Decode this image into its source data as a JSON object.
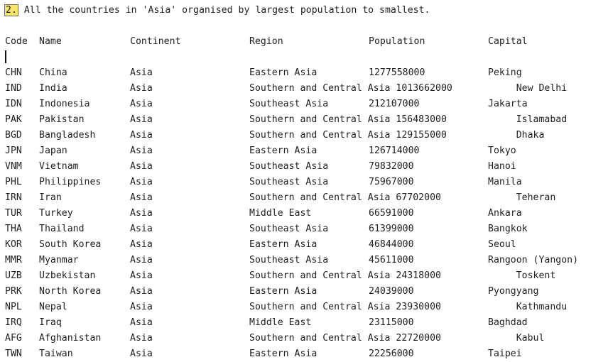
{
  "heading": {
    "marker": "2.",
    "text": " All the countries in 'Asia' organised by largest population to smallest."
  },
  "table": {
    "columns": [
      "Code",
      "Name",
      "Continent",
      "Region",
      "Population",
      "Capital"
    ],
    "rows": [
      [
        "CHN",
        "China",
        "Asia",
        "Eastern Asia",
        "1277558000",
        "Peking"
      ],
      [
        "IND",
        "India",
        "Asia",
        "Southern and Central Asia 1013662000",
        "",
        "     New Delhi"
      ],
      [
        "IDN",
        "Indonesia",
        "Asia",
        "Southeast Asia",
        "212107000",
        "Jakarta"
      ],
      [
        "PAK",
        "Pakistan",
        "Asia",
        "Southern and Central Asia 156483000",
        "",
        "     Islamabad"
      ],
      [
        "BGD",
        "Bangladesh",
        "Asia",
        "Southern and Central Asia 129155000",
        "",
        "     Dhaka"
      ],
      [
        "JPN",
        "Japan",
        "Asia",
        "Eastern Asia",
        "126714000",
        "Tokyo"
      ],
      [
        "VNM",
        "Vietnam",
        "Asia",
        "Southeast Asia",
        "79832000",
        "Hanoi"
      ],
      [
        "PHL",
        "Philippines",
        "Asia",
        "Southeast Asia",
        "75967000",
        "Manila"
      ],
      [
        "IRN",
        "Iran",
        "Asia",
        "Southern and Central Asia 67702000",
        "",
        "     Teheran"
      ],
      [
        "TUR",
        "Turkey",
        "Asia",
        "Middle East",
        "66591000",
        "Ankara"
      ],
      [
        "THA",
        "Thailand",
        "Asia",
        "Southeast Asia",
        "61399000",
        "Bangkok"
      ],
      [
        "KOR",
        "South Korea",
        "Asia",
        "Eastern Asia",
        "46844000",
        "Seoul"
      ],
      [
        "MMR",
        "Myanmar",
        "Asia",
        "Southeast Asia",
        "45611000",
        "Rangoon (Yangon)"
      ],
      [
        "UZB",
        "Uzbekistan",
        "Asia",
        "Southern and Central Asia 24318000",
        "",
        "     Toskent"
      ],
      [
        "PRK",
        "North Korea",
        "Asia",
        "Eastern Asia",
        "24039000",
        "Pyongyang"
      ],
      [
        "NPL",
        "Nepal",
        "Asia",
        "Southern and Central Asia 23930000",
        "",
        "     Kathmandu"
      ],
      [
        "IRQ",
        "Iraq",
        "Asia",
        "Middle East",
        "23115000",
        "Baghdad"
      ],
      [
        "AFG",
        "Afghanistan",
        "Asia",
        "Southern and Central Asia 22720000",
        "",
        "     Kabul"
      ],
      [
        "TWN",
        "Taiwan",
        "Asia",
        "Eastern Asia",
        "22256000",
        "Taipei"
      ]
    ]
  },
  "colors": {
    "marker_background": "#f7e66b",
    "text": "#1f1f1f",
    "background": "#ffffff"
  }
}
